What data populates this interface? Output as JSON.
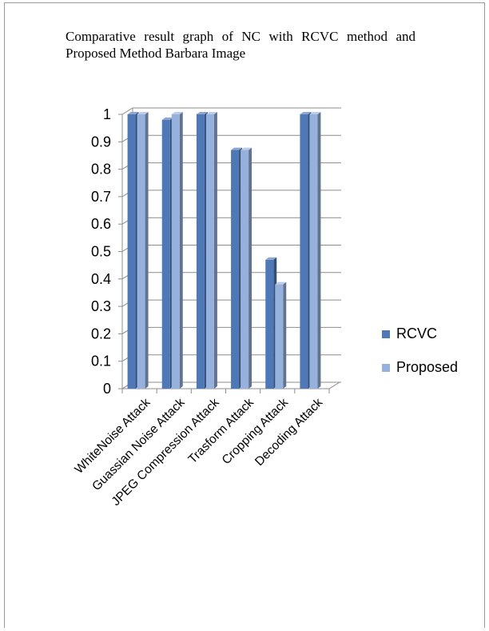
{
  "chart_data": {
    "type": "bar",
    "title": "Comparative result graph of NC with RCVC method and Proposed Method Barbara Image",
    "categories": [
      "WhiteNoise Attack",
      "Guassian Noise Attack",
      "JPEG Compression Attack",
      "Trasform Attack",
      "Cropping Attack",
      "Decoding Attack"
    ],
    "series": [
      {
        "name": "RCVC",
        "values": [
          1.0,
          0.98,
          1.0,
          0.87,
          0.47,
          1.0
        ],
        "color": "#4f78b6"
      },
      {
        "name": "Proposed",
        "values": [
          1.0,
          1.0,
          1.0,
          0.87,
          0.38,
          1.0
        ],
        "color": "#95b1dc"
      }
    ],
    "yticks": [
      "0",
      "0.1",
      "0.2",
      "0.3",
      "0.4",
      "0.5",
      "0.6",
      "0.7",
      "0.8",
      "0.9",
      "1"
    ],
    "ylim": [
      0,
      1
    ],
    "grid": true,
    "legend_position": "right",
    "style": "3d-clustered-column"
  }
}
